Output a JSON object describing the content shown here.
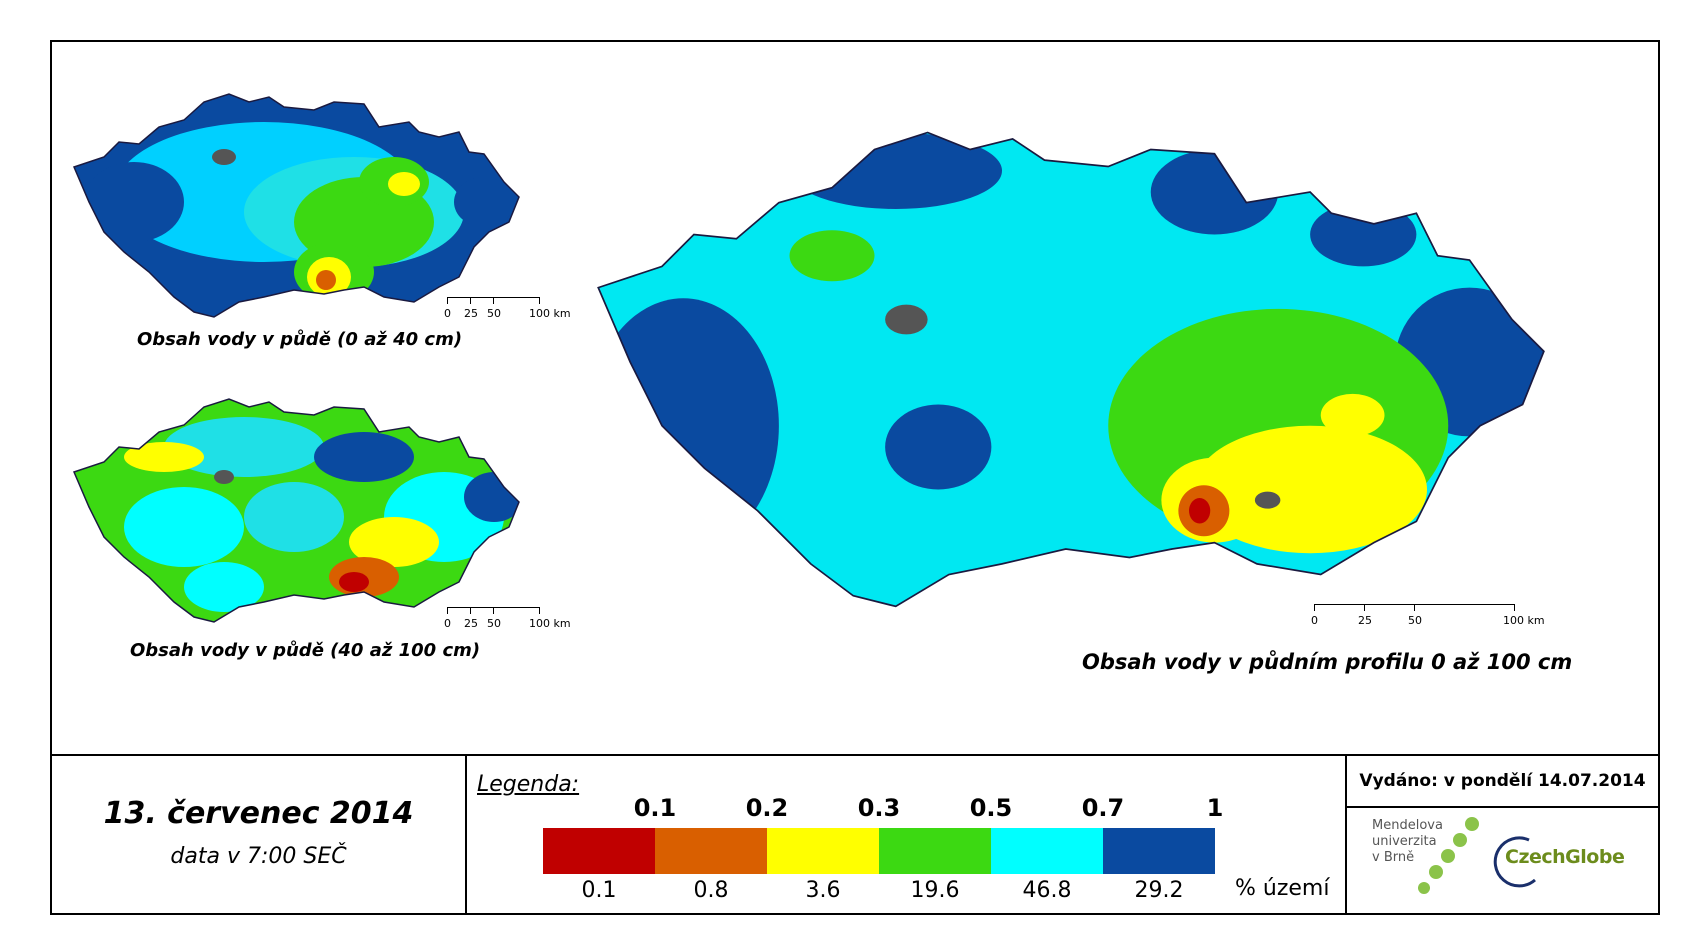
{
  "maps": {
    "top_left": {
      "caption": "Obsah vody v půdě (0 až 40 cm)",
      "scale": [
        "0",
        "25",
        "50",
        "100 km"
      ]
    },
    "bottom_left": {
      "caption": "Obsah vody v půdě (40 až 100 cm)",
      "scale": [
        "0",
        "25",
        "50",
        "100 km"
      ]
    },
    "main": {
      "caption": "Obsah vody v půdním profilu 0 až 100 cm",
      "scale": [
        "0",
        "25",
        "50",
        "100 km"
      ]
    }
  },
  "date": {
    "main": "13. červenec 2014",
    "sub": "data v 7:00 SEČ"
  },
  "legend": {
    "title": "Legenda:",
    "thresholds": [
      "0.1",
      "0.2",
      "0.3",
      "0.5",
      "0.7",
      "1"
    ],
    "bins": [
      {
        "color": "#c00000",
        "percent": "0.1"
      },
      {
        "color": "#d95f00",
        "percent": "0.8"
      },
      {
        "color": "#ffff00",
        "percent": "3.6"
      },
      {
        "color": "#3cd912",
        "percent": "19.6"
      },
      {
        "color": "#00ffff",
        "percent": "46.8"
      },
      {
        "color": "#0a4aa0",
        "percent": "29.2"
      }
    ],
    "unit": "% území"
  },
  "info": {
    "issued": "Vydáno: v pondělí 14.07.2014",
    "mendel_lines": [
      "Mendelova",
      "univerzita",
      "v Brně"
    ],
    "czechglobe": "CzechGlobe"
  }
}
